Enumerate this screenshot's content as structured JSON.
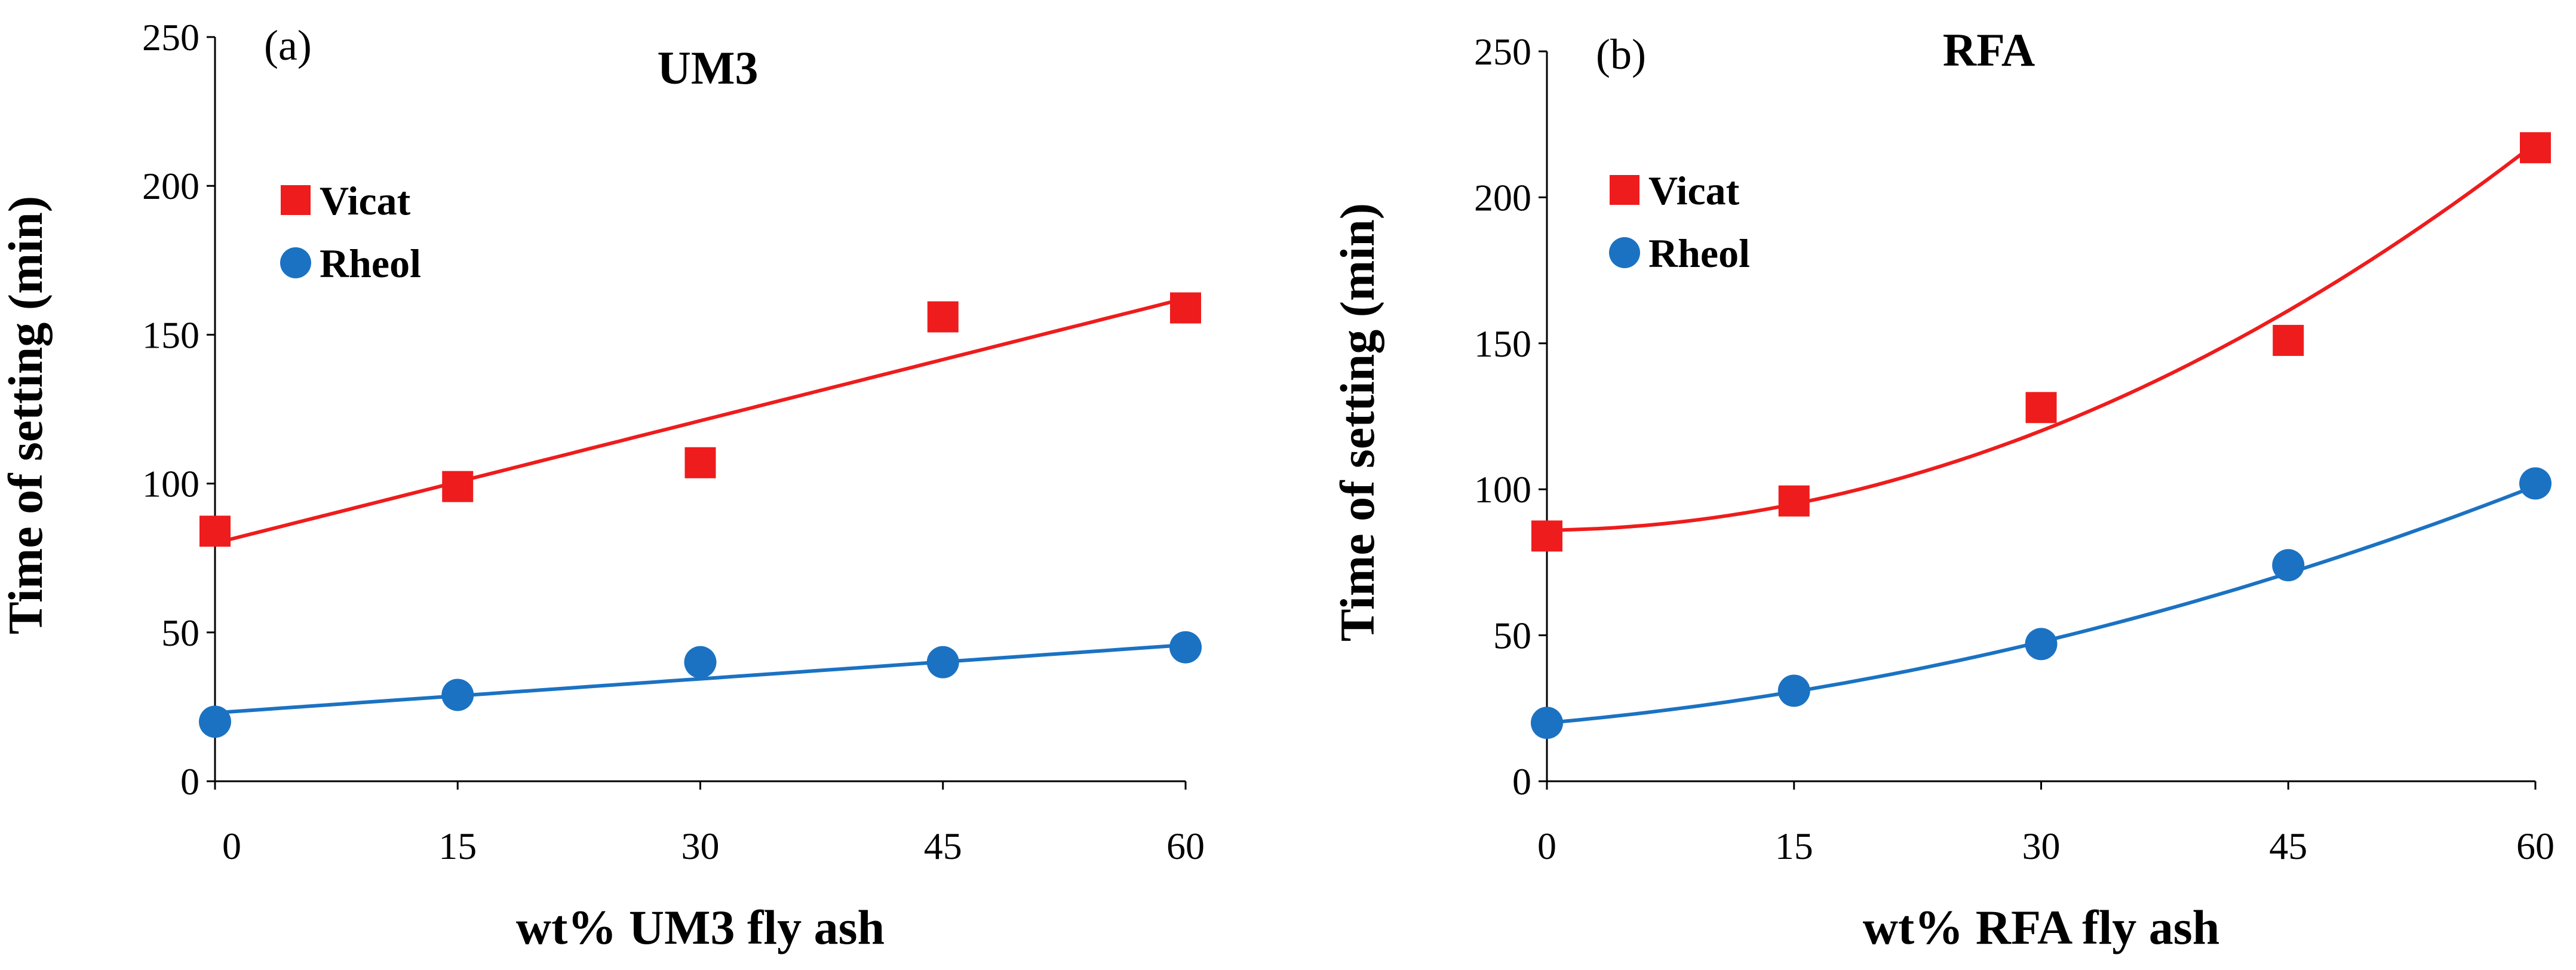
{
  "chart_data": [
    {
      "type": "scatter",
      "panel_label": "(a)",
      "title": "UM3",
      "xlabel": "wt% UM3 fly ash",
      "ylabel": "Time of setting (min)",
      "xlim": [
        0,
        60
      ],
      "ylim": [
        0,
        250
      ],
      "xticks": [
        0,
        15,
        30,
        45,
        60
      ],
      "yticks": [
        0,
        50,
        100,
        150,
        200,
        250
      ],
      "xtick_labels": [
        "0",
        "15",
        "30",
        "45",
        "60"
      ],
      "ytick_labels": [
        "0",
        "50",
        "100",
        "150",
        "200",
        "250"
      ],
      "legend_position": "upper-left",
      "series": [
        {
          "name": "Vicat",
          "marker": "square",
          "color": "#ee1c1c",
          "x": [
            0,
            15,
            30,
            45,
            60
          ],
          "values": [
            84,
            99,
            107,
            156,
            159
          ],
          "trend": {
            "kind": "linear",
            "coefficients": [
              80,
              1.37
            ]
          }
        },
        {
          "name": "Rheol",
          "marker": "circle",
          "color": "#1b72c2",
          "x": [
            0,
            15,
            30,
            45,
            60
          ],
          "values": [
            20,
            29,
            40,
            40,
            45
          ],
          "trend": {
            "kind": "linear",
            "coefficients": [
              23,
              0.38
            ]
          }
        }
      ]
    },
    {
      "type": "scatter",
      "panel_label": "(b)",
      "title": "RFA",
      "xlabel": "wt% RFA fly ash",
      "ylabel": "Time of setting (min)",
      "xlim": [
        0,
        60
      ],
      "ylim": [
        0,
        250
      ],
      "xticks": [
        0,
        15,
        30,
        45,
        60
      ],
      "yticks": [
        0,
        50,
        100,
        150,
        200,
        250
      ],
      "xtick_labels": [
        "0",
        "15",
        "30",
        "45",
        "60"
      ],
      "ytick_labels": [
        "0",
        "50",
        "100",
        "150",
        "200",
        "250"
      ],
      "legend_position": "upper-left",
      "series": [
        {
          "name": "Vicat",
          "marker": "square",
          "color": "#ee1c1c",
          "x": [
            0,
            15,
            30,
            45,
            60
          ],
          "values": [
            84,
            96,
            128,
            151,
            217
          ],
          "trend": {
            "kind": "quadratic",
            "coefficients": [
              86,
              0.06,
              0.0358
            ]
          }
        },
        {
          "name": "Rheol",
          "marker": "circle",
          "color": "#1b72c2",
          "x": [
            0,
            15,
            30,
            45,
            60
          ],
          "values": [
            20,
            31,
            47,
            74,
            102
          ],
          "trend": {
            "kind": "quadratic",
            "coefficients": [
              20,
              0.5,
              0.0142
            ]
          }
        }
      ]
    }
  ]
}
